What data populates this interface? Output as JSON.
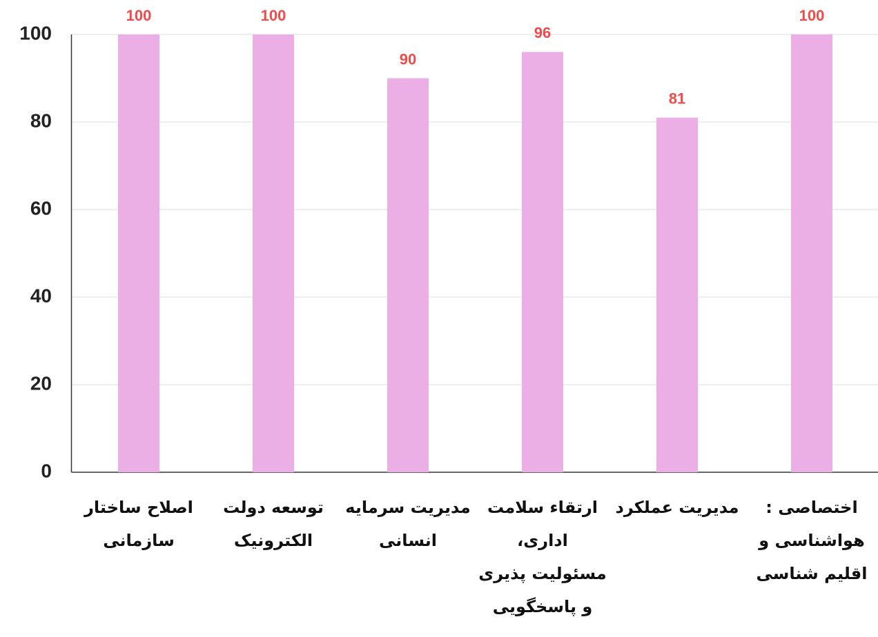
{
  "chart_data": {
    "type": "bar",
    "categories": [
      "اصلاح ساختار سازمانی",
      "توسعه دولت الکترونیک",
      "مدیریت سرمایه انسانی",
      "ارتقاء سلامت اداری، مسئولیت پذیری و پاسخگویی",
      "مدیریت عملکرد",
      "اختصاصی : هواشناسی و اقلیم شناسی"
    ],
    "values": [
      100,
      100,
      90,
      96,
      81,
      100
    ],
    "color": "#ebaee5",
    "label_color": "#f04a4a",
    "ylim": [
      0,
      100
    ],
    "yticks": [
      0,
      20,
      40,
      60,
      80,
      100
    ],
    "grid": true
  }
}
